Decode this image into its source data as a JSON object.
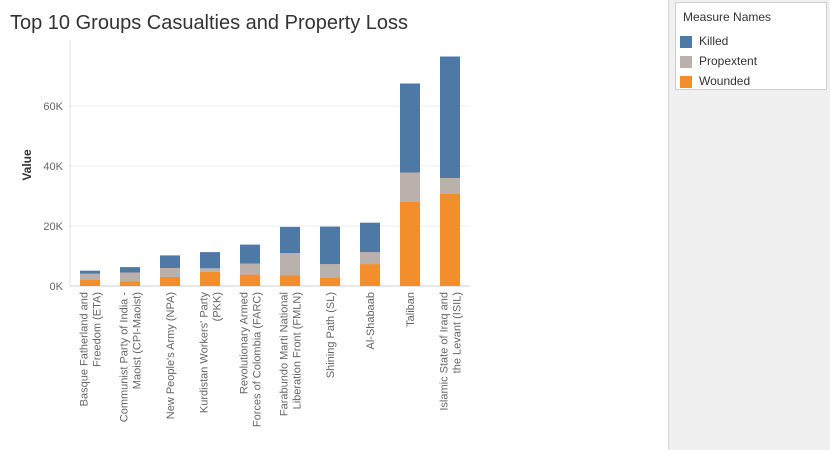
{
  "chart_data": {
    "type": "bar",
    "stacked": true,
    "title": "Top 10 Groups Casualties and Property Loss",
    "xlabel": "",
    "ylabel": "Value",
    "ylim": [
      0,
      77000
    ],
    "yticks": [
      0,
      20000,
      40000,
      60000
    ],
    "ytick_labels": [
      "0K",
      "20K",
      "40K",
      "60K"
    ],
    "grid": true,
    "legend": {
      "title": "Measure Names",
      "position": "top-right",
      "items": [
        "Killed",
        "Propextent",
        "Wounded"
      ]
    },
    "categories": [
      [
        "Basque Fatherland and",
        "Freedom (ETA)"
      ],
      [
        "Communist Party of India -",
        "Maoist (CPI-Maoist)"
      ],
      [
        "New People's Army (NPA)"
      ],
      [
        "Kurdistan Workers' Party",
        "(PKK)"
      ],
      [
        "Revolutionary Armed",
        "Forces of Colombia (FARC)"
      ],
      [
        "Farabundo Marti National",
        "Liberation Front (FMLN)"
      ],
      [
        "Shining Path (SL)"
      ],
      [
        "Al-Shabaab"
      ],
      [
        "Taliban"
      ],
      [
        "Islamic State of Iraq and",
        "the Levant (ISIL)"
      ]
    ],
    "series": [
      {
        "name": "Wounded",
        "color": "#f28e2b",
        "values": [
          2000,
          1500,
          3000,
          4700,
          3800,
          3500,
          2800,
          7300,
          28000,
          30800
        ]
      },
      {
        "name": "Propextent",
        "color": "#bab0ac",
        "values": [
          2100,
          3000,
          3000,
          1200,
          3700,
          7500,
          4500,
          4000,
          9800,
          5200
        ]
      },
      {
        "name": "Killed",
        "color": "#4e79a7",
        "values": [
          1000,
          1800,
          4200,
          5400,
          6300,
          8700,
          12500,
          9800,
          29700,
          40500
        ]
      }
    ]
  }
}
